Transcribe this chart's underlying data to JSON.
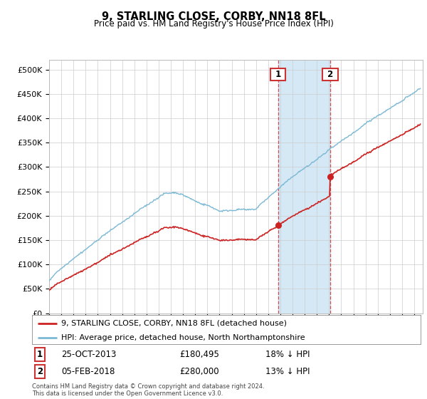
{
  "title": "9, STARLING CLOSE, CORBY, NN18 8FL",
  "subtitle": "Price paid vs. HM Land Registry's House Price Index (HPI)",
  "legend_line1": "9, STARLING CLOSE, CORBY, NN18 8FL (detached house)",
  "legend_line2": "HPI: Average price, detached house, North Northamptonshire",
  "purchase1_date": "25-OCT-2013",
  "purchase1_price": "£180,495",
  "purchase1_hpi": "18% ↓ HPI",
  "purchase1_year": 2013.82,
  "purchase1_value": 180495,
  "purchase2_date": "05-FEB-2018",
  "purchase2_price": "£280,000",
  "purchase2_hpi": "13% ↓ HPI",
  "purchase2_year": 2018.1,
  "purchase2_value": 280000,
  "hpi_line_color": "#7bb8d4",
  "price_line_color": "#cc2222",
  "shaded_color": "#d4e8f5",
  "vline_color": "#cc3333",
  "ylim": [
    0,
    520000
  ],
  "yticks": [
    0,
    50000,
    100000,
    150000,
    200000,
    250000,
    300000,
    350000,
    400000,
    450000,
    500000
  ],
  "footer": "Contains HM Land Registry data © Crown copyright and database right 2024.\nThis data is licensed under the Open Government Licence v3.0.",
  "background_color": "#ffffff",
  "grid_color": "#cccccc",
  "hpi_seed": 42,
  "hpi_noise_scale": 2500,
  "prop_noise_scale": 2000
}
